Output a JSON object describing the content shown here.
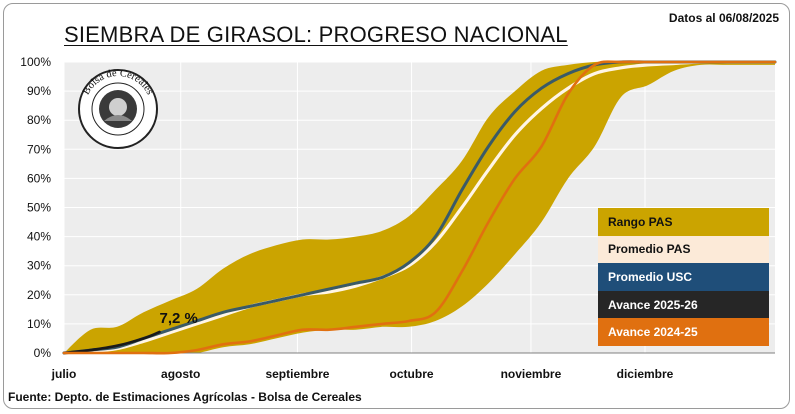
{
  "title": "SIEMBRA DE GIRASOL: PROGRESO NACIONAL",
  "date_label": "Datos al 06/08/2025",
  "source": "Fuente: Depto. de Estimaciones Agrícolas - Bolsa de Cereales",
  "logo_text": "Bolsa de Cereales",
  "colors": {
    "range": "#CBA400",
    "promedio_pas": "#FFF5E6",
    "promedio_usc": "#3A5A67",
    "avance_2025": "#1A1A1A",
    "avance_2024": "#E07010",
    "plot_bg": "#EDEDED"
  },
  "legend": [
    {
      "label": "Rango PAS",
      "bg": "#CBA400",
      "fg": "#111111"
    },
    {
      "label": "Promedio PAS",
      "bg": "#FCEAD8",
      "fg": "#111111"
    },
    {
      "label": "Promedio USC",
      "bg": "#1F4E79",
      "fg": "#FFFFFF"
    },
    {
      "label": "Avance 2025-26",
      "bg": "#262626",
      "fg": "#FFFFFF"
    },
    {
      "label": "Avance 2024-25",
      "bg": "#E07010",
      "fg": "#FFFFFF"
    }
  ],
  "chart_data": {
    "type": "area",
    "title": "SIEMBRA DE GIRASOL: PROGRESO NACIONAL",
    "xlabel": "",
    "ylabel": "",
    "x_unit": "weeks since 1 July",
    "xlim": [
      0,
      26.8
    ],
    "ylim": [
      0,
      100
    ],
    "y_ticks": [
      "0%",
      "10%",
      "20%",
      "30%",
      "40%",
      "50%",
      "60%",
      "70%",
      "80%",
      "90%",
      "100%"
    ],
    "x_ticks": [
      {
        "label": "julio",
        "x": 0
      },
      {
        "label": "agosto",
        "x": 4.4
      },
      {
        "label": "septiembre",
        "x": 8.8
      },
      {
        "label": "octubre",
        "x": 13.1
      },
      {
        "label": "noviembre",
        "x": 17.6
      },
      {
        "label": "diciembre",
        "x": 21.9
      }
    ],
    "grid": true,
    "legend_position": "bottom-right",
    "range": {
      "name": "Rango PAS",
      "x": [
        0,
        1,
        2,
        3,
        4,
        5,
        6,
        7,
        8,
        9,
        10,
        11,
        12,
        13,
        14,
        15,
        16,
        17,
        18,
        19,
        20,
        21,
        22,
        23,
        24,
        25,
        26,
        26.8
      ],
      "upper": [
        0,
        8,
        9,
        14,
        18,
        22,
        29,
        34,
        37,
        39,
        39,
        40,
        42,
        47,
        56,
        66,
        81,
        90,
        97,
        99,
        100,
        100,
        100,
        100,
        100,
        100,
        100,
        100
      ],
      "lower": [
        0,
        0,
        0,
        0,
        0,
        0,
        2,
        3,
        5,
        7,
        8,
        8,
        9,
        9,
        11,
        16,
        24,
        34,
        45,
        60,
        71,
        88,
        92,
        97,
        99,
        99,
        99,
        99
      ]
    },
    "series": [
      {
        "name": "Promedio PAS",
        "x": [
          0,
          1,
          2,
          3,
          4,
          5,
          6,
          7,
          8,
          9,
          10,
          11,
          12,
          13,
          14,
          15,
          16,
          17,
          18,
          19,
          20,
          21,
          22,
          23,
          24,
          25,
          26,
          26.8
        ],
        "values": [
          0,
          0.5,
          1.5,
          4,
          7,
          10,
          13,
          16,
          18,
          20,
          21,
          23,
          26,
          30,
          38,
          50,
          63,
          75,
          84,
          91,
          96,
          98,
          99,
          99.5,
          100,
          100,
          100,
          100
        ]
      },
      {
        "name": "Promedio USC",
        "x": [
          0,
          1,
          2,
          3,
          4,
          5,
          6,
          7,
          8,
          9,
          10,
          11,
          12,
          13,
          14,
          15,
          16,
          17,
          18,
          19,
          20,
          21,
          22,
          23,
          24,
          25,
          26,
          26.8
        ],
        "values": [
          0,
          1,
          2,
          5,
          8,
          11,
          14,
          16,
          18,
          20,
          22,
          24,
          26,
          31,
          40,
          56,
          71,
          83,
          91,
          96,
          99,
          100,
          100,
          100,
          100,
          100,
          100,
          100
        ]
      },
      {
        "name": "Avance 2025-26",
        "x": [
          0,
          1,
          2,
          3,
          3.6
        ],
        "values": [
          0,
          1,
          2.5,
          5,
          7.2
        ]
      },
      {
        "name": "Avance 2024-25",
        "x": [
          0,
          1,
          2,
          3,
          4,
          5,
          6,
          7,
          8,
          9,
          10,
          11,
          12,
          13,
          14,
          15,
          16,
          17,
          18,
          19,
          20,
          21,
          22,
          23,
          24,
          25,
          26,
          26.8
        ],
        "values": [
          0,
          0,
          0,
          0,
          0,
          1,
          3,
          4,
          6,
          8,
          8,
          9,
          10,
          11,
          14,
          28,
          45,
          60,
          71,
          89,
          99,
          100,
          100,
          100,
          100,
          100,
          100,
          100
        ]
      }
    ],
    "annotations": [
      {
        "text": "7,2 %",
        "x": 3.6,
        "y": 7.2
      }
    ]
  }
}
